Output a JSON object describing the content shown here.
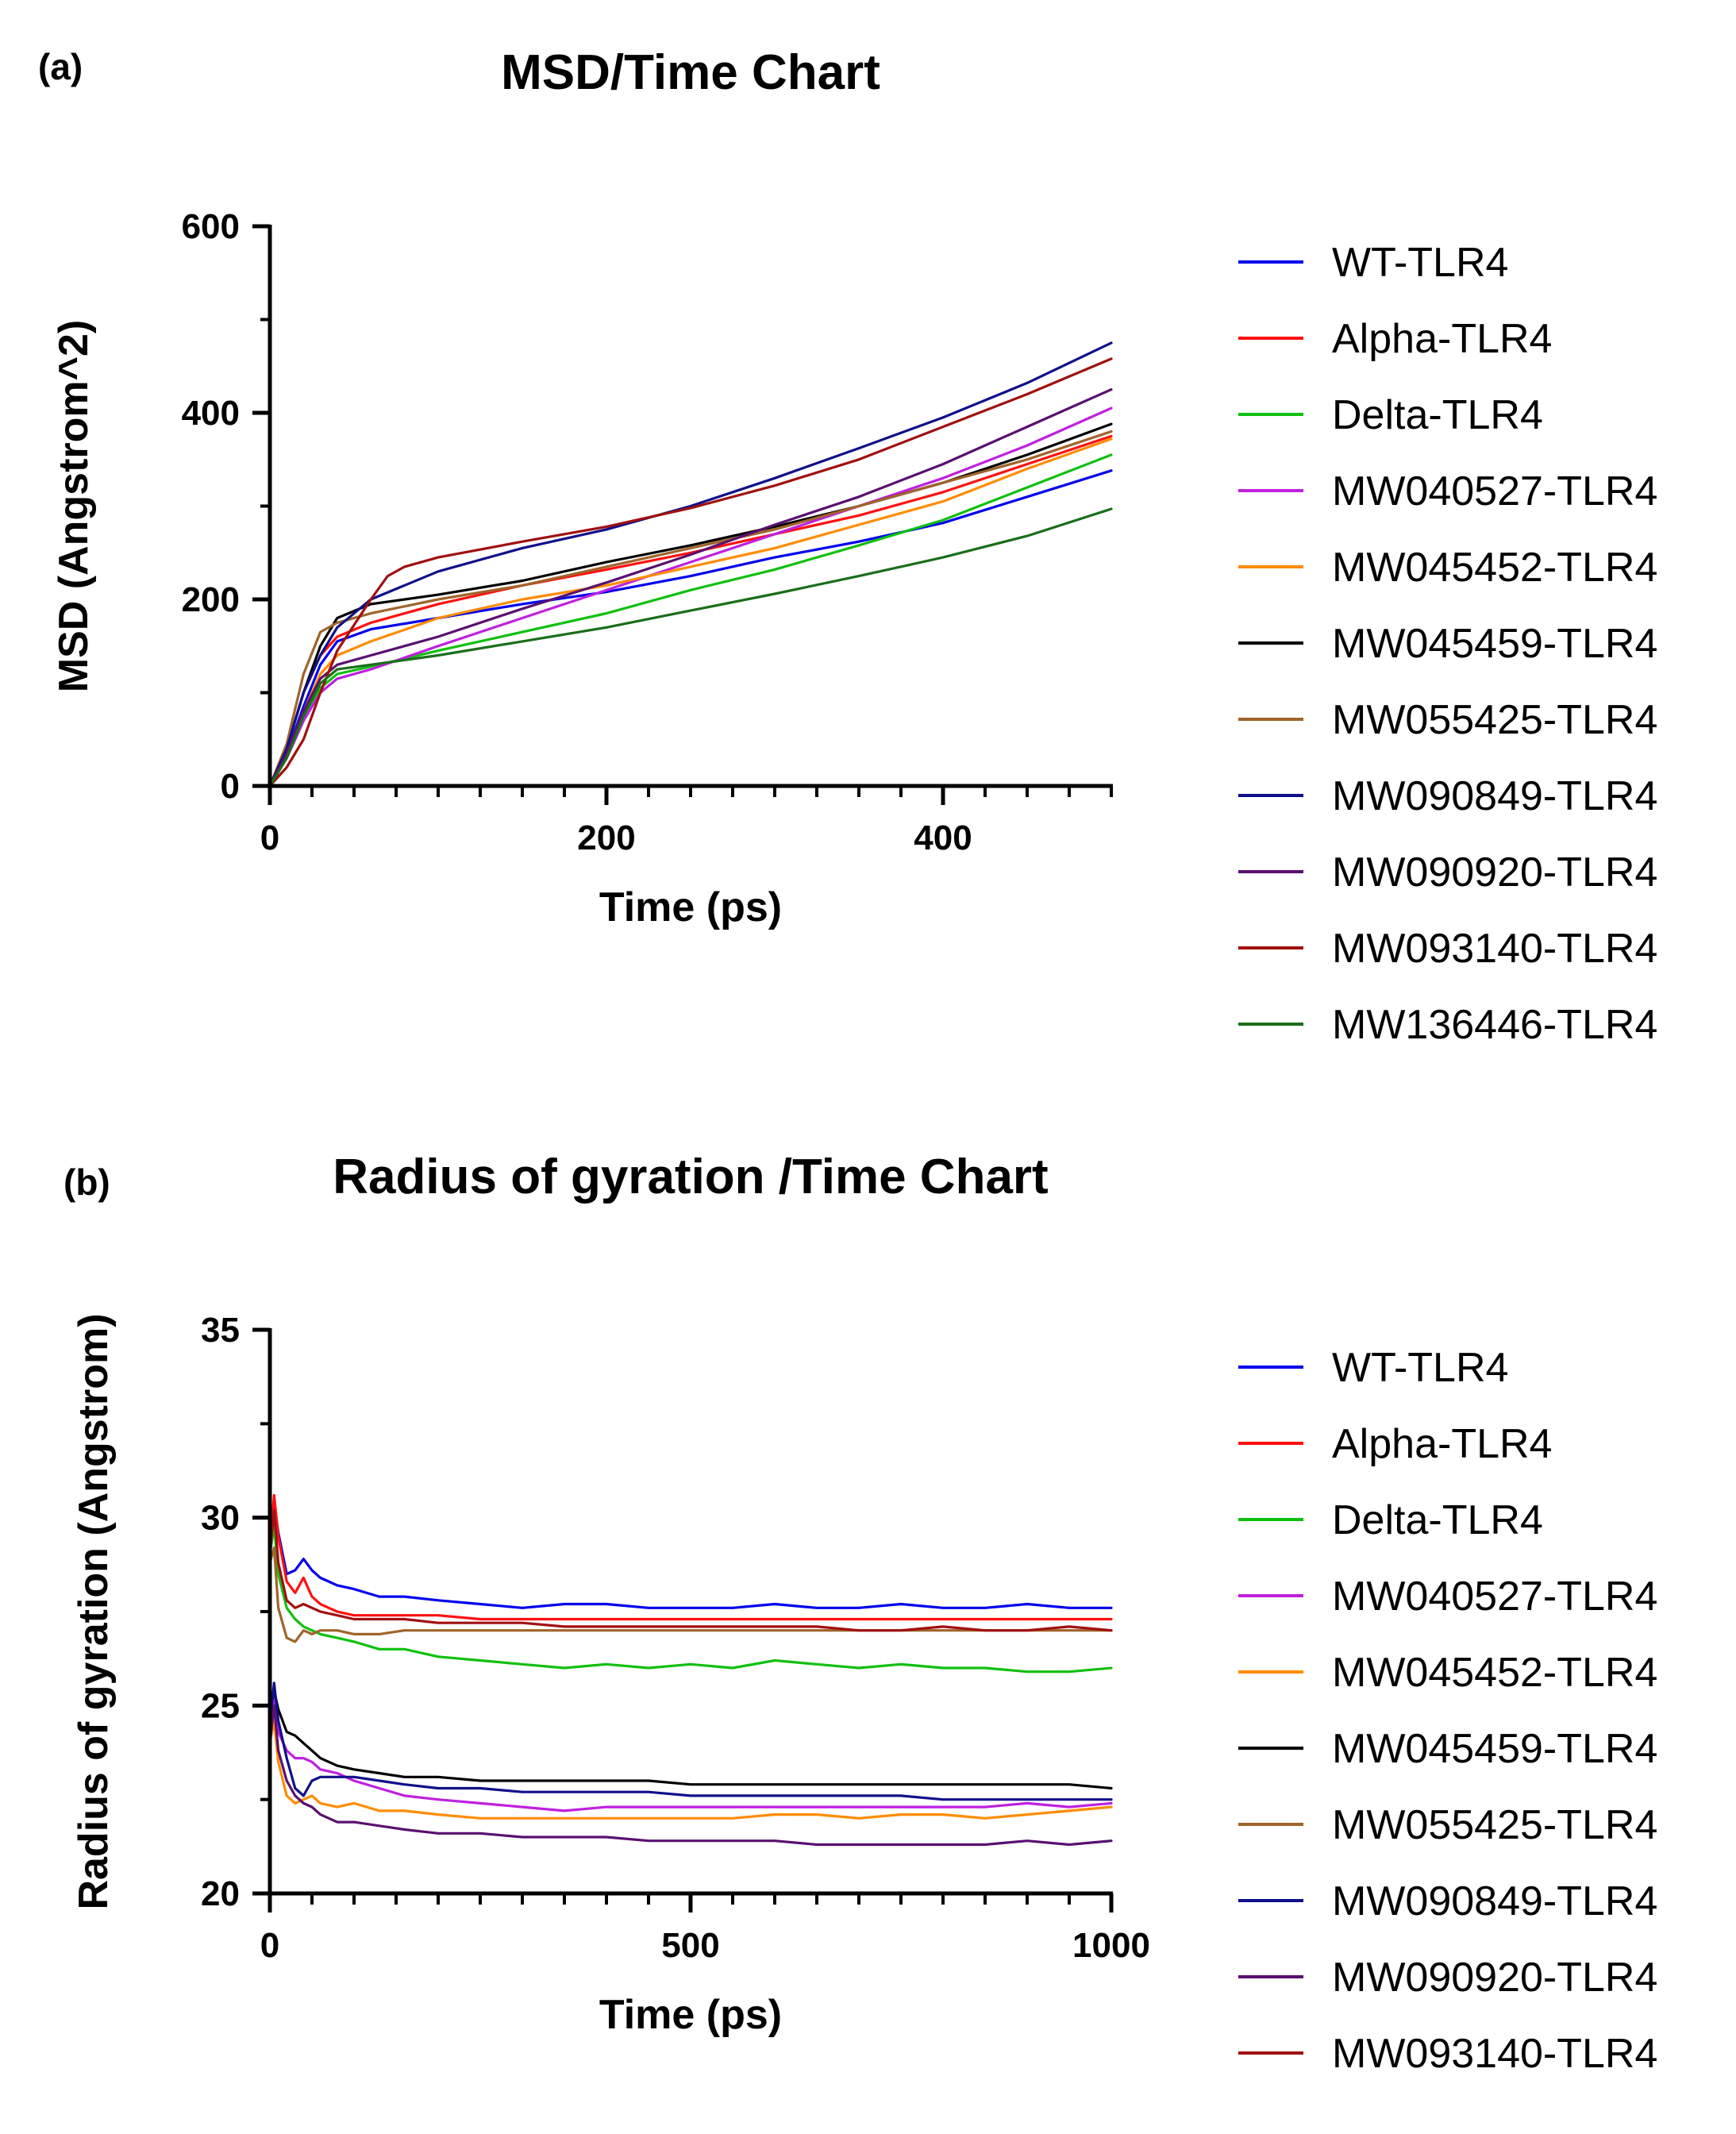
{
  "chart_data": [
    {
      "panel_label": "(a)",
      "type": "line",
      "title": "MSD/Time Chart",
      "xlabel": "Time (ps)",
      "ylabel": "MSD (Angstrom^2)",
      "xlim": [
        0,
        500
      ],
      "ylim": [
        0,
        600
      ],
      "xticks": [
        0,
        200,
        400
      ],
      "yticks": [
        0,
        200,
        400,
        600
      ],
      "grid": false,
      "legend_position": "right",
      "series": [
        {
          "name": "WT-TLR4",
          "color": "#0000ee",
          "x": [
            0,
            10,
            20,
            30,
            40,
            60,
            100,
            150,
            200,
            250,
            300,
            350,
            400,
            450,
            500
          ],
          "y": [
            0,
            35,
            85,
            130,
            155,
            168,
            180,
            195,
            208,
            225,
            245,
            262,
            282,
            310,
            338
          ]
        },
        {
          "name": "Alpha-TLR4",
          "color": "#ff1010",
          "x": [
            0,
            10,
            20,
            30,
            40,
            60,
            100,
            150,
            200,
            250,
            300,
            350,
            400,
            450,
            500
          ],
          "y": [
            0,
            40,
            100,
            140,
            160,
            175,
            195,
            215,
            232,
            250,
            270,
            290,
            315,
            345,
            375
          ]
        },
        {
          "name": "Delta-TLR4",
          "color": "#10c010",
          "x": [
            0,
            10,
            20,
            30,
            40,
            60,
            100,
            150,
            200,
            250,
            300,
            350,
            400,
            450,
            500
          ],
          "y": [
            0,
            30,
            70,
            105,
            120,
            128,
            145,
            165,
            185,
            210,
            232,
            258,
            285,
            320,
            355
          ]
        },
        {
          "name": "MW040527-TLR4",
          "color": "#c020e0",
          "x": [
            0,
            10,
            20,
            30,
            40,
            60,
            100,
            150,
            200,
            250,
            300,
            350,
            400,
            450,
            500
          ],
          "y": [
            0,
            30,
            70,
            100,
            115,
            125,
            150,
            180,
            210,
            240,
            270,
            300,
            330,
            365,
            405
          ]
        },
        {
          "name": "MW045452-TLR4",
          "color": "#ff8c00",
          "x": [
            0,
            10,
            20,
            30,
            40,
            60,
            100,
            150,
            200,
            250,
            300,
            350,
            400,
            450,
            500
          ],
          "y": [
            0,
            35,
            80,
            120,
            140,
            155,
            180,
            200,
            215,
            235,
            255,
            280,
            305,
            340,
            372
          ]
        },
        {
          "name": "MW045459-TLR4",
          "color": "#000000",
          "x": [
            0,
            10,
            20,
            30,
            40,
            60,
            100,
            150,
            200,
            250,
            300,
            350,
            400,
            450,
            500
          ],
          "y": [
            0,
            40,
            100,
            150,
            180,
            195,
            205,
            220,
            240,
            258,
            278,
            300,
            325,
            355,
            388
          ]
        },
        {
          "name": "MW055425-TLR4",
          "color": "#a0642a",
          "x": [
            0,
            10,
            20,
            30,
            40,
            60,
            100,
            150,
            200,
            250,
            300,
            350,
            400,
            450,
            500
          ],
          "y": [
            0,
            45,
            120,
            165,
            175,
            185,
            200,
            215,
            235,
            255,
            275,
            300,
            325,
            350,
            380
          ]
        },
        {
          "name": "MW090849-TLR4",
          "color": "#10108a",
          "x": [
            0,
            10,
            20,
            30,
            40,
            60,
            100,
            150,
            200,
            250,
            300,
            350,
            400,
            450,
            500
          ],
          "y": [
            0,
            40,
            100,
            140,
            170,
            200,
            230,
            255,
            275,
            300,
            330,
            362,
            395,
            432,
            475
          ]
        },
        {
          "name": "MW090920-TLR4",
          "color": "#5a1070",
          "x": [
            0,
            10,
            20,
            30,
            40,
            60,
            100,
            150,
            200,
            250,
            300,
            350,
            400,
            450,
            500
          ],
          "y": [
            0,
            35,
            80,
            115,
            130,
            140,
            160,
            190,
            218,
            248,
            280,
            310,
            345,
            385,
            425
          ]
        },
        {
          "name": "MW093140-TLR4",
          "color": "#a01010",
          "x": [
            0,
            10,
            20,
            30,
            40,
            60,
            70,
            80,
            100,
            150,
            200,
            250,
            300,
            350,
            400,
            450,
            500
          ],
          "y": [
            0,
            20,
            50,
            100,
            145,
            200,
            225,
            235,
            245,
            262,
            278,
            298,
            322,
            350,
            385,
            420,
            458
          ]
        },
        {
          "name": "MW136446-TLR4",
          "color": "#1a6e1a",
          "x": [
            0,
            10,
            20,
            30,
            40,
            60,
            100,
            150,
            200,
            250,
            300,
            350,
            400,
            450,
            500
          ],
          "y": [
            0,
            30,
            75,
            110,
            125,
            130,
            140,
            155,
            170,
            188,
            206,
            225,
            245,
            268,
            297
          ]
        }
      ]
    },
    {
      "panel_label": "(b)",
      "type": "line",
      "title": "Radius of gyration /Time Chart",
      "xlabel": "Time (ps)",
      "ylabel": "Radius of gyration (Angstrom)",
      "xlim": [
        0,
        1000
      ],
      "ylim": [
        20,
        35
      ],
      "xticks": [
        0,
        500,
        1000
      ],
      "yticks": [
        20,
        25,
        30,
        35
      ],
      "grid": false,
      "legend_position": "right",
      "series": [
        {
          "name": "WT-TLR4",
          "color": "#0000ee",
          "x": [
            0,
            5,
            10,
            20,
            30,
            40,
            50,
            60,
            70,
            80,
            100,
            130,
            160,
            200,
            250,
            300,
            350,
            400,
            450,
            500,
            550,
            600,
            650,
            700,
            750,
            800,
            850,
            900,
            950,
            1000
          ],
          "y": [
            29.2,
            30.4,
            29.6,
            28.5,
            28.6,
            28.9,
            28.6,
            28.4,
            28.3,
            28.2,
            28.1,
            27.9,
            27.9,
            27.8,
            27.7,
            27.6,
            27.7,
            27.7,
            27.6,
            27.6,
            27.6,
            27.7,
            27.6,
            27.6,
            27.7,
            27.6,
            27.6,
            27.7,
            27.6,
            27.6
          ]
        },
        {
          "name": "Alpha-TLR4",
          "color": "#ff1010",
          "x": [
            0,
            5,
            10,
            20,
            30,
            40,
            50,
            60,
            70,
            80,
            100,
            130,
            160,
            200,
            250,
            300,
            350,
            400,
            450,
            500,
            550,
            600,
            650,
            700,
            750,
            800,
            850,
            900,
            950,
            1000
          ],
          "y": [
            29.2,
            30.6,
            29.5,
            28.3,
            28.0,
            28.4,
            27.9,
            27.7,
            27.6,
            27.5,
            27.4,
            27.4,
            27.4,
            27.4,
            27.3,
            27.3,
            27.3,
            27.3,
            27.3,
            27.3,
            27.3,
            27.3,
            27.3,
            27.3,
            27.3,
            27.3,
            27.3,
            27.3,
            27.3,
            27.3
          ]
        },
        {
          "name": "Delta-TLR4",
          "color": "#10c010",
          "x": [
            0,
            5,
            10,
            20,
            30,
            40,
            50,
            60,
            80,
            100,
            130,
            160,
            200,
            250,
            300,
            350,
            400,
            450,
            500,
            550,
            600,
            650,
            700,
            750,
            800,
            850,
            900,
            950,
            1000
          ],
          "y": [
            29.0,
            29.8,
            28.5,
            27.6,
            27.3,
            27.1,
            27.0,
            26.9,
            26.8,
            26.7,
            26.5,
            26.5,
            26.3,
            26.2,
            26.1,
            26.0,
            26.1,
            26.0,
            26.1,
            26.0,
            26.2,
            26.1,
            26.0,
            26.1,
            26.0,
            26.0,
            25.9,
            25.9,
            26.0
          ]
        },
        {
          "name": "MW040527-TLR4",
          "color": "#c020e0",
          "x": [
            0,
            5,
            10,
            20,
            30,
            40,
            50,
            60,
            80,
            100,
            130,
            160,
            200,
            250,
            300,
            350,
            400,
            450,
            500,
            550,
            600,
            650,
            700,
            750,
            800,
            850,
            900,
            950,
            1000
          ],
          "y": [
            24.2,
            25.2,
            24.3,
            23.8,
            23.6,
            23.6,
            23.5,
            23.3,
            23.2,
            23.0,
            22.8,
            22.6,
            22.5,
            22.4,
            22.3,
            22.2,
            22.3,
            22.3,
            22.3,
            22.3,
            22.3,
            22.3,
            22.3,
            22.3,
            22.3,
            22.3,
            22.4,
            22.3,
            22.4
          ]
        },
        {
          "name": "MW045452-TLR4",
          "color": "#ff8c00",
          "x": [
            0,
            5,
            10,
            20,
            30,
            40,
            50,
            60,
            80,
            100,
            130,
            160,
            200,
            250,
            300,
            350,
            400,
            450,
            500,
            550,
            600,
            650,
            700,
            750,
            800,
            850,
            900,
            950,
            1000
          ],
          "y": [
            24.0,
            24.6,
            23.5,
            22.6,
            22.4,
            22.5,
            22.6,
            22.4,
            22.3,
            22.4,
            22.2,
            22.2,
            22.1,
            22.0,
            22.0,
            22.0,
            22.0,
            22.0,
            22.0,
            22.0,
            22.1,
            22.1,
            22.0,
            22.1,
            22.1,
            22.0,
            22.1,
            22.2,
            22.3
          ]
        },
        {
          "name": "MW045459-TLR4",
          "color": "#000000",
          "x": [
            0,
            5,
            10,
            20,
            30,
            40,
            50,
            60,
            80,
            100,
            130,
            160,
            200,
            250,
            300,
            350,
            400,
            450,
            500,
            550,
            600,
            650,
            700,
            750,
            800,
            850,
            900,
            950,
            1000
          ],
          "y": [
            24.8,
            25.4,
            24.9,
            24.3,
            24.2,
            24.0,
            23.8,
            23.6,
            23.4,
            23.3,
            23.2,
            23.1,
            23.1,
            23.0,
            23.0,
            23.0,
            23.0,
            23.0,
            22.9,
            22.9,
            22.9,
            22.9,
            22.9,
            22.9,
            22.9,
            22.9,
            22.9,
            22.9,
            22.8
          ]
        },
        {
          "name": "MW055425-TLR4",
          "color": "#a0642a",
          "x": [
            0,
            5,
            10,
            20,
            30,
            40,
            50,
            60,
            80,
            100,
            130,
            160,
            200,
            250,
            300,
            350,
            400,
            450,
            500,
            550,
            600,
            650,
            700,
            750,
            800,
            850,
            900,
            950,
            1000
          ],
          "y": [
            28.8,
            29.2,
            27.6,
            26.8,
            26.7,
            27.0,
            26.9,
            27.0,
            27.0,
            26.9,
            26.9,
            27.0,
            27.0,
            27.0,
            27.0,
            27.0,
            27.0,
            27.0,
            27.0,
            27.0,
            27.0,
            27.0,
            27.0,
            27.0,
            27.0,
            27.0,
            27.0,
            27.0,
            27.0
          ]
        },
        {
          "name": "MW090849-TLR4",
          "color": "#10108a",
          "x": [
            0,
            5,
            10,
            20,
            30,
            40,
            50,
            60,
            80,
            100,
            130,
            160,
            200,
            250,
            300,
            350,
            400,
            450,
            500,
            550,
            600,
            650,
            700,
            750,
            800,
            850,
            900,
            950,
            1000
          ],
          "y": [
            24.5,
            25.6,
            24.6,
            23.6,
            22.8,
            22.6,
            23.0,
            23.1,
            23.1,
            23.1,
            23.0,
            22.9,
            22.8,
            22.8,
            22.7,
            22.7,
            22.7,
            22.7,
            22.6,
            22.6,
            22.6,
            22.6,
            22.6,
            22.6,
            22.5,
            22.5,
            22.5,
            22.5,
            22.5
          ]
        },
        {
          "name": "MW090920-TLR4",
          "color": "#5a1070",
          "x": [
            0,
            5,
            10,
            20,
            30,
            40,
            50,
            60,
            80,
            100,
            130,
            160,
            200,
            250,
            300,
            350,
            400,
            450,
            500,
            550,
            600,
            650,
            700,
            750,
            800,
            850,
            900,
            950,
            1000
          ],
          "y": [
            24.0,
            25.0,
            23.8,
            23.0,
            22.6,
            22.4,
            22.3,
            22.1,
            21.9,
            21.9,
            21.8,
            21.7,
            21.6,
            21.6,
            21.5,
            21.5,
            21.5,
            21.4,
            21.4,
            21.4,
            21.4,
            21.3,
            21.3,
            21.3,
            21.3,
            21.3,
            21.4,
            21.3,
            21.4
          ]
        },
        {
          "name": "MW093140-TLR4",
          "color": "#a01010",
          "x": [
            0,
            5,
            10,
            20,
            30,
            40,
            50,
            60,
            80,
            100,
            130,
            160,
            200,
            250,
            300,
            350,
            400,
            450,
            500,
            550,
            600,
            650,
            700,
            750,
            800,
            850,
            900,
            950,
            1000
          ],
          "y": [
            29.0,
            30.2,
            28.8,
            27.8,
            27.6,
            27.7,
            27.6,
            27.5,
            27.4,
            27.3,
            27.3,
            27.3,
            27.2,
            27.2,
            27.2,
            27.1,
            27.1,
            27.1,
            27.1,
            27.1,
            27.1,
            27.1,
            27.0,
            27.0,
            27.1,
            27.0,
            27.0,
            27.1,
            27.0
          ]
        }
      ]
    }
  ]
}
